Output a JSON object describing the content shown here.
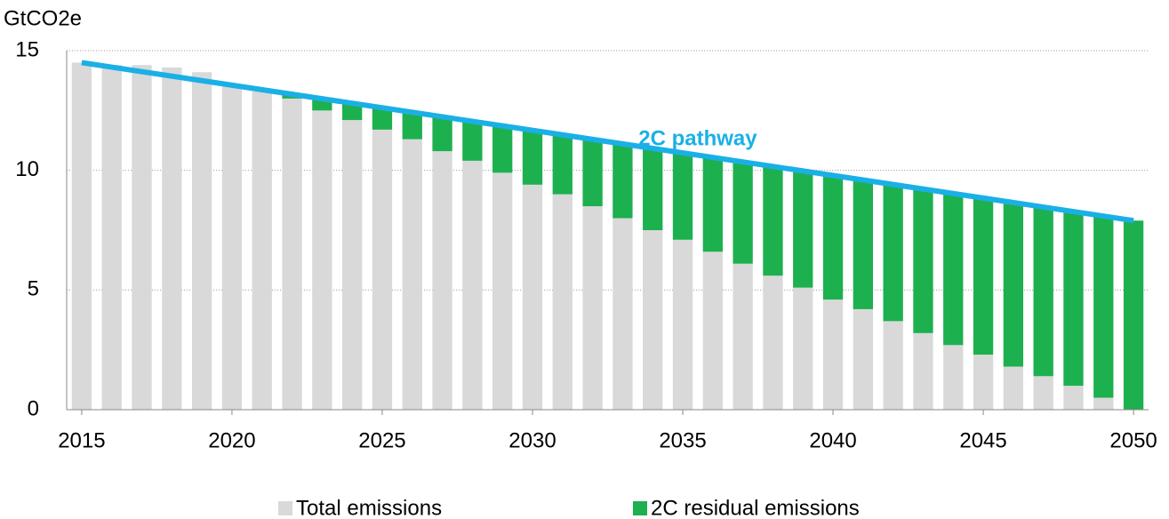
{
  "chart_data": {
    "type": "bar",
    "stacked": true,
    "y_label": "GtCO2e",
    "x": [
      2015,
      2016,
      2017,
      2018,
      2019,
      2020,
      2021,
      2022,
      2023,
      2024,
      2025,
      2026,
      2027,
      2028,
      2029,
      2030,
      2031,
      2032,
      2033,
      2034,
      2035,
      2036,
      2037,
      2038,
      2039,
      2040,
      2041,
      2042,
      2043,
      2044,
      2045,
      2046,
      2047,
      2048,
      2049,
      2050
    ],
    "series": [
      {
        "name": "Total emissions",
        "color": "#d9d9d9",
        "values": [
          14.5,
          14.4,
          14.4,
          14.3,
          14.1,
          13.6,
          13.3,
          13.0,
          12.5,
          12.1,
          11.7,
          11.3,
          10.8,
          10.4,
          9.9,
          9.4,
          9.0,
          8.5,
          8.0,
          7.5,
          7.1,
          6.6,
          6.1,
          5.6,
          5.1,
          4.6,
          4.2,
          3.7,
          3.2,
          2.7,
          2.3,
          1.8,
          1.4,
          1.0,
          0.5,
          0
        ]
      },
      {
        "name": "2C residual emissions",
        "color": "#1db04f",
        "values": [
          0,
          0,
          0,
          0,
          0,
          0,
          0,
          0.2,
          0.5,
          0.7,
          0.9,
          1.1,
          1.4,
          1.7,
          2.0,
          2.3,
          2.5,
          2.8,
          3.1,
          3.4,
          3.6,
          3.9,
          4.2,
          4.6,
          4.9,
          5.2,
          5.4,
          5.7,
          6.0,
          6.3,
          6.5,
          6.8,
          7.1,
          7.3,
          7.6,
          7.9
        ]
      }
    ],
    "line": {
      "x": [
        2015,
        2050
      ],
      "values": [
        14.5,
        7.9
      ],
      "color": "#1ab0e6"
    },
    "annotation": "2C pathway",
    "xlim": [
      2014.5,
      2050.5
    ],
    "xticks": [
      2015,
      2020,
      2025,
      2030,
      2035,
      2040,
      2045,
      2050
    ],
    "ylim": [
      0,
      15
    ],
    "yticks": [
      0,
      5,
      10,
      15
    ],
    "grid": true
  }
}
